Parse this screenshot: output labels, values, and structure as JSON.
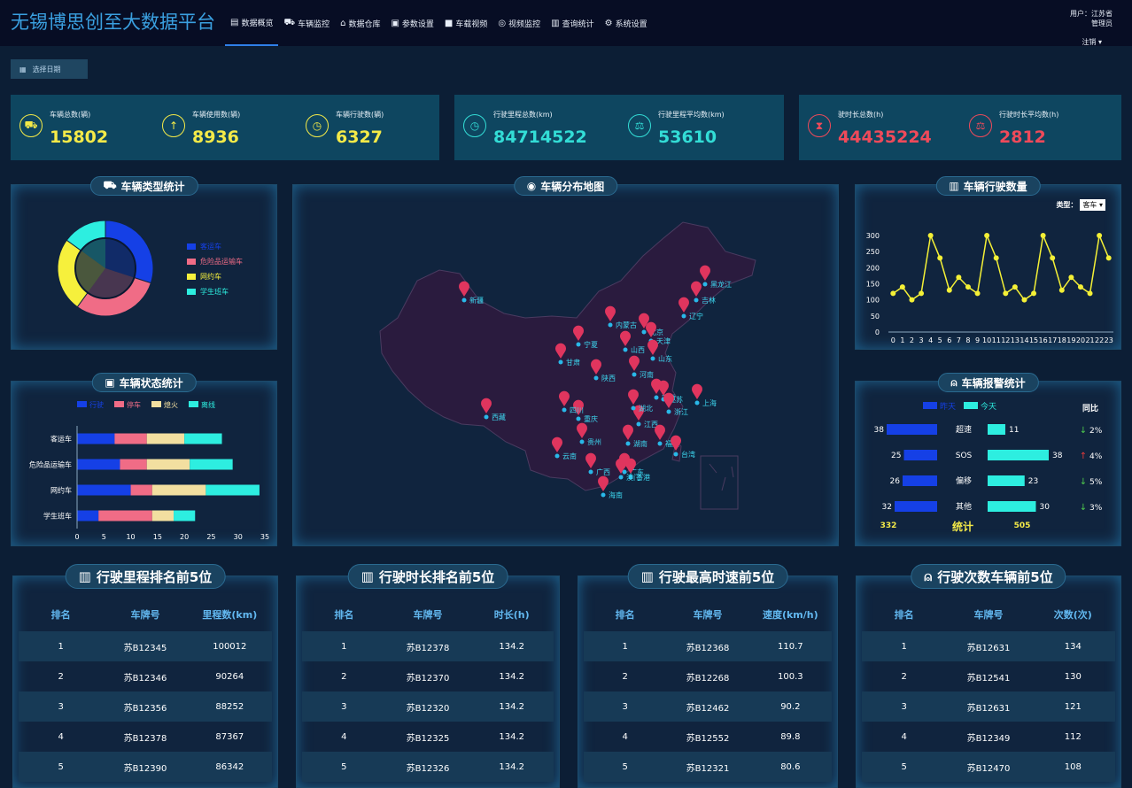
{
  "brand": "无锡博思创至大数据平台",
  "nav": [
    {
      "label": "数据概览",
      "icon": "dashboard-icon",
      "glyph": "▤"
    },
    {
      "label": "车辆监控",
      "icon": "car-icon",
      "glyph": "⛟"
    },
    {
      "label": "数据仓库",
      "icon": "warehouse-icon",
      "glyph": "⌂"
    },
    {
      "label": "参数设置",
      "icon": "settings-form-icon",
      "glyph": "▣"
    },
    {
      "label": "车载视频",
      "icon": "video-camera-icon",
      "glyph": "■"
    },
    {
      "label": "视频监控",
      "icon": "location-pin-icon",
      "glyph": "◎"
    },
    {
      "label": "查询统计",
      "icon": "bar-chart-icon",
      "glyph": "▥"
    },
    {
      "label": "系统设置",
      "icon": "gear-icon",
      "glyph": "⚙"
    }
  ],
  "user": {
    "line1": "用户：江苏省",
    "line2": "管理员",
    "logout": "注销"
  },
  "date_button": "选择日期",
  "kpis": [
    {
      "label": "车辆总数(辆)",
      "value": "15802",
      "color": "#f4ea48",
      "icon": "car-icon",
      "glyph": "⛟"
    },
    {
      "label": "车辆使用数(辆)",
      "value": "8936",
      "color": "#f4ea48",
      "icon": "upload-icon",
      "glyph": "↑"
    },
    {
      "label": "车辆行驶数(辆)",
      "value": "6327",
      "color": "#f4ea48",
      "icon": "clock-icon",
      "glyph": "◷"
    },
    {
      "label": "行驶里程总数(km)",
      "value": "84714522",
      "color": "#33ddd6",
      "icon": "timer-icon",
      "glyph": "◷"
    },
    {
      "label": "行驶里程平均数(km)",
      "value": "53610",
      "color": "#33ddd6",
      "icon": "scale-icon",
      "glyph": "⚖"
    },
    {
      "label": "驶时长总数(h)",
      "value": "44435224",
      "color": "#ef4a5a",
      "icon": "hourglass-icon",
      "glyph": "⧗"
    },
    {
      "label": "行驶时长平均数(h)",
      "value": "2812",
      "color": "#ef4a5a",
      "icon": "balance-icon",
      "glyph": "⚖"
    }
  ],
  "panels": {
    "vehicle_type": "车辆类型统计",
    "vehicle_map": "车辆分布地图",
    "trip_count": "车辆行驶数量",
    "vehicle_status": "车辆状态统计",
    "alarm": "车辆报警统计"
  },
  "pie": {
    "legend": [
      {
        "label": "客运车",
        "color": "#1540e6",
        "value": 30
      },
      {
        "label": "危险品运输车",
        "color": "#f06c86",
        "value": 30
      },
      {
        "label": "网约车",
        "color": "#f6f03c",
        "value": 25
      },
      {
        "label": "学生班车",
        "color": "#2deee0",
        "value": 15
      }
    ]
  },
  "map": {
    "cities": [
      "新疆",
      "西藏",
      "宁夏",
      "甘肃",
      "陕西",
      "内蒙古",
      "山西",
      "北京",
      "天津",
      "山东",
      "河南",
      "黑龙江",
      "吉林",
      "辽宁",
      "安徽",
      "江苏",
      "上海",
      "浙江",
      "江西",
      "湖北",
      "湖南",
      "重庆",
      "四川",
      "贵州",
      "云南",
      "广西",
      "广东",
      "香港",
      "澳门",
      "海南",
      "福建",
      "台湾"
    ]
  },
  "trip_chart": {
    "type_label": "类型：",
    "type_value": "客车",
    "chart_data": {
      "type": "line",
      "x": [
        0,
        1,
        2,
        3,
        4,
        5,
        6,
        7,
        8,
        9,
        10,
        11,
        12,
        13,
        14,
        15,
        16,
        17,
        18,
        19,
        20,
        21,
        22,
        23
      ],
      "values": [
        120,
        140,
        100,
        120,
        300,
        230,
        130,
        170,
        140,
        120,
        300,
        230,
        120,
        140,
        100,
        120,
        300,
        230,
        130,
        170,
        140,
        120,
        300,
        230
      ],
      "ylim": [
        0,
        300
      ],
      "color": "#f4f036"
    }
  },
  "status_chart": {
    "chart_data": {
      "type": "bar",
      "orientation": "horizontal",
      "stacked": true,
      "categories": [
        "客运车",
        "危险品运输车",
        "网约车",
        "学生班车"
      ],
      "series": [
        {
          "name": "行驶",
          "color": "#1540e6",
          "values": [
            7,
            8,
            10,
            4
          ]
        },
        {
          "name": "停车",
          "color": "#f06c86",
          "values": [
            6,
            5,
            4,
            10
          ]
        },
        {
          "name": "熄火",
          "color": "#f2dfa0",
          "values": [
            7,
            8,
            10,
            4
          ]
        },
        {
          "name": "离线",
          "color": "#2deee0",
          "values": [
            7,
            8,
            10,
            4
          ]
        }
      ],
      "xticks": [
        "0",
        "5",
        "10",
        "15",
        "20",
        "25",
        "30",
        "35"
      ],
      "xlim": [
        0,
        35
      ]
    }
  },
  "alarm_chart": {
    "legend": [
      {
        "name": "昨天",
        "color": "#1540e6"
      },
      {
        "name": "今天",
        "color": "#2deee0"
      }
    ],
    "compare_title": "同比",
    "rows": [
      {
        "label": "超速",
        "yesterday": 38,
        "today": 11,
        "change": "2%",
        "dir": "down"
      },
      {
        "label": "SOS",
        "yesterday": 25,
        "today": 38,
        "change": "4%",
        "dir": "up"
      },
      {
        "label": "偏移",
        "yesterday": 26,
        "today": 23,
        "change": "5%",
        "dir": "down"
      },
      {
        "label": "其他",
        "yesterday": 32,
        "today": 30,
        "change": "3%",
        "dir": "down"
      }
    ],
    "total_yesterday": "332",
    "total_label": "统计",
    "total_today": "505"
  },
  "tables": [
    {
      "title": "行驶里程排名前5位",
      "cols": [
        "排名",
        "车牌号",
        "里程数(km)"
      ],
      "rows": [
        [
          "1",
          "苏B12345",
          "100012"
        ],
        [
          "2",
          "苏B12346",
          "90264"
        ],
        [
          "3",
          "苏B12356",
          "88252"
        ],
        [
          "4",
          "苏B12378",
          "87367"
        ],
        [
          "5",
          "苏B12390",
          "86342"
        ]
      ]
    },
    {
      "title": "行驶时长排名前5位",
      "cols": [
        "排名",
        "车牌号",
        "时长(h)"
      ],
      "rows": [
        [
          "1",
          "苏B12378",
          "134.2"
        ],
        [
          "2",
          "苏B12370",
          "134.2"
        ],
        [
          "3",
          "苏B12320",
          "134.2"
        ],
        [
          "4",
          "苏B12325",
          "134.2"
        ],
        [
          "5",
          "苏B12326",
          "134.2"
        ]
      ]
    },
    {
      "title": "行驶最高时速前5位",
      "cols": [
        "排名",
        "车牌号",
        "速度(km/h)"
      ],
      "rows": [
        [
          "1",
          "苏B12368",
          "110.7"
        ],
        [
          "2",
          "苏B12268",
          "100.3"
        ],
        [
          "3",
          "苏B12462",
          "90.2"
        ],
        [
          "4",
          "苏B12552",
          "89.8"
        ],
        [
          "5",
          "苏B12321",
          "80.6"
        ]
      ]
    },
    {
      "title": "行驶次数车辆前5位",
      "cols": [
        "排名",
        "车牌号",
        "次数(次)"
      ],
      "rows": [
        [
          "1",
          "苏B12631",
          "134"
        ],
        [
          "2",
          "苏B12541",
          "130"
        ],
        [
          "3",
          "苏B12631",
          "121"
        ],
        [
          "4",
          "苏B12349",
          "112"
        ],
        [
          "5",
          "苏B12470",
          "108"
        ]
      ]
    }
  ]
}
